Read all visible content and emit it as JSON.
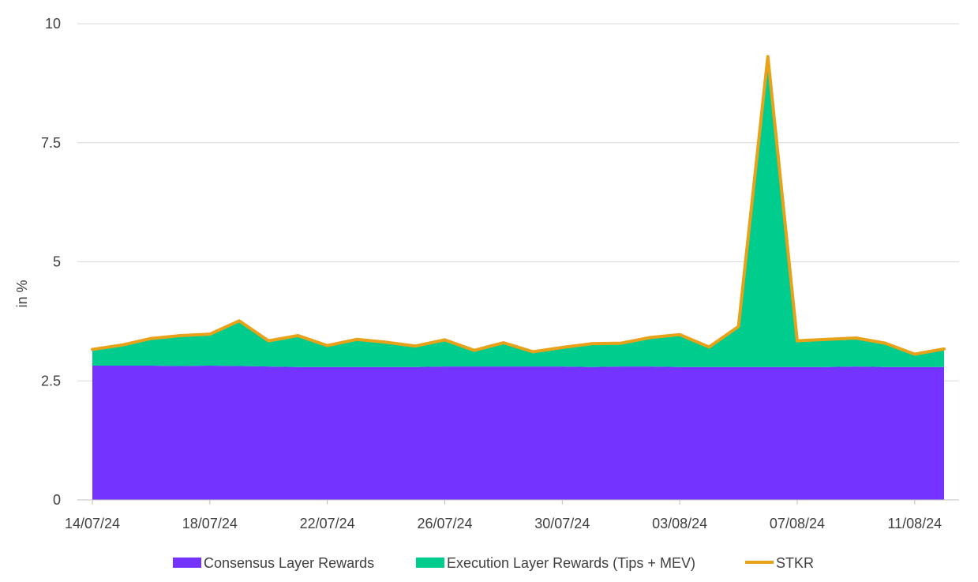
{
  "chart_data": {
    "type": "area",
    "ylabel": "in %",
    "xlabel": "",
    "ylim": [
      0,
      10
    ],
    "yticks": [
      "0",
      "2.5",
      "5",
      "7.5",
      "10"
    ],
    "x": [
      "14/07/24",
      "15/07/24",
      "16/07/24",
      "17/07/24",
      "18/07/24",
      "19/07/24",
      "20/07/24",
      "21/07/24",
      "22/07/24",
      "23/07/24",
      "24/07/24",
      "25/07/24",
      "26/07/24",
      "27/07/24",
      "28/07/24",
      "29/07/24",
      "30/07/24",
      "31/07/24",
      "01/08/24",
      "02/08/24",
      "03/08/24",
      "04/08/24",
      "05/08/24",
      "06/08/24",
      "07/08/24",
      "08/08/24",
      "09/08/24",
      "10/08/24",
      "11/08/24",
      "12/08/24"
    ],
    "xtick_labels": [
      "14/07/24",
      "18/07/24",
      "22/07/24",
      "26/07/24",
      "30/07/24",
      "03/08/24",
      "07/08/24",
      "11/08/24"
    ],
    "legend_position": "bottom",
    "grid": true,
    "series": [
      {
        "name": "Consensus Layer Rewards",
        "kind": "area",
        "color": "#7433FF",
        "values": [
          2.82,
          2.82,
          2.82,
          2.81,
          2.82,
          2.81,
          2.8,
          2.79,
          2.79,
          2.79,
          2.79,
          2.79,
          2.8,
          2.8,
          2.8,
          2.8,
          2.8,
          2.79,
          2.8,
          2.8,
          2.79,
          2.79,
          2.79,
          2.79,
          2.79,
          2.79,
          2.8,
          2.79,
          2.79,
          2.79
        ]
      },
      {
        "name": "Execution Layer Rewards (Tips + MEV)",
        "kind": "area",
        "color": "#00CC8E",
        "values": [
          0.34,
          0.43,
          0.57,
          0.64,
          0.66,
          0.95,
          0.54,
          0.66,
          0.45,
          0.58,
          0.52,
          0.44,
          0.56,
          0.34,
          0.5,
          0.31,
          0.4,
          0.49,
          0.49,
          0.61,
          0.68,
          0.42,
          0.85,
          6.52,
          0.55,
          0.58,
          0.6,
          0.5,
          0.27,
          0.38
        ]
      },
      {
        "name": "STKR",
        "kind": "line",
        "color": "#E8A21A",
        "values": [
          3.16,
          3.25,
          3.39,
          3.45,
          3.48,
          3.76,
          3.34,
          3.45,
          3.24,
          3.37,
          3.31,
          3.23,
          3.36,
          3.14,
          3.3,
          3.11,
          3.2,
          3.28,
          3.29,
          3.41,
          3.47,
          3.21,
          3.64,
          9.31,
          3.34,
          3.37,
          3.4,
          3.29,
          3.06,
          3.17
        ]
      }
    ]
  }
}
